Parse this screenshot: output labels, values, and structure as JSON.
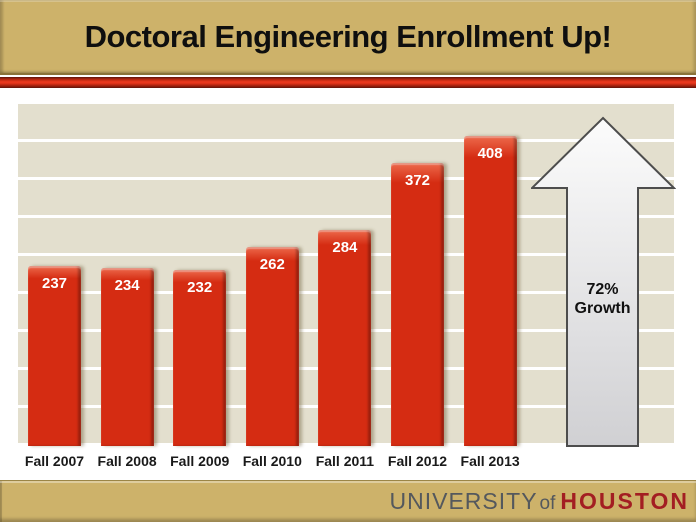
{
  "header": {
    "title": "Doctoral Engineering Enrollment Up!"
  },
  "chart_data": {
    "type": "bar",
    "title": "Doctoral Engineering Enrollment Up!",
    "categories": [
      "Fall 2007",
      "Fall 2008",
      "Fall 2009",
      "Fall 2010",
      "Fall 2011",
      "Fall 2012",
      "Fall 2013"
    ],
    "values": [
      237,
      234,
      232,
      262,
      284,
      372,
      408
    ],
    "xlabel": "",
    "ylabel": "",
    "ylim": [
      0,
      450
    ],
    "gridline_step": 50,
    "grid": true,
    "legend": false,
    "value_labels_shown": true,
    "annotation": "72% Growth"
  },
  "growth": {
    "line1": "72%",
    "line2": "Growth"
  },
  "footer": {
    "university": "UNIVERSITY",
    "of": "of",
    "houston": "HOUSTON"
  },
  "colors": {
    "gold": "#cdb26a",
    "gold_dark": "#8a7339",
    "stripe_red": "#e8381e",
    "band": "#e3dfce",
    "bar": "#d52c12",
    "value_label": "#ffffff",
    "xlabel": "#1a1a1a",
    "title_text": "#0f0f0f",
    "arrow_fill_top": "#fcfcfc",
    "arrow_fill_bottom": "#d0d0d3",
    "arrow_stroke": "#4d4d4d",
    "growth_text": "#111111",
    "university_gray": "#54585d",
    "houston_red": "#a31e22"
  }
}
